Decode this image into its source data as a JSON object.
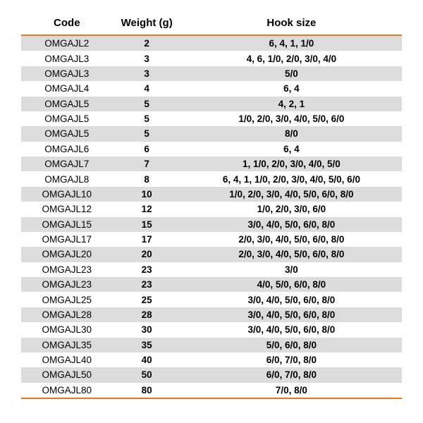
{
  "table": {
    "type": "table",
    "columns": [
      {
        "key": "code",
        "label": "Code",
        "width_pct": 24,
        "align": "center",
        "font_weight": 400
      },
      {
        "key": "weight",
        "label": "Weight (g)",
        "width_pct": 18,
        "align": "center",
        "font_weight": 700
      },
      {
        "key": "hook",
        "label": "Hook size",
        "width_pct": 58,
        "align": "center",
        "font_weight": 700
      }
    ],
    "header_fontsize": 15,
    "header_font_weight": 700,
    "body_fontsize": 13.5,
    "accent_color": "#e87722",
    "stripe_colors": [
      "#dcdcdc",
      "#ffffff"
    ],
    "text_color": "#000000",
    "background_color": "#ffffff",
    "font_family": "Arial, Helvetica, sans-serif",
    "row_padding_y": 3.2,
    "rows": [
      {
        "code": "OMGAJL2",
        "weight": "2",
        "hook": "6, 4, 1, 1/0"
      },
      {
        "code": "OMGAJL3",
        "weight": "3",
        "hook": "4, 6, 1/0, 2/0, 3/0, 4/0"
      },
      {
        "code": "OMGAJL3",
        "weight": "3",
        "hook": "5/0"
      },
      {
        "code": "OMGAJL4",
        "weight": "4",
        "hook": "6, 4"
      },
      {
        "code": "OMGAJL5",
        "weight": "5",
        "hook": "4, 2, 1"
      },
      {
        "code": "OMGAJL5",
        "weight": "5",
        "hook": "1/0, 2/0, 3/0, 4/0, 5/0, 6/0"
      },
      {
        "code": "OMGAJL5",
        "weight": "5",
        "hook": "8/0"
      },
      {
        "code": "OMGAJL6",
        "weight": "6",
        "hook": "6, 4"
      },
      {
        "code": "OMGAJL7",
        "weight": "7",
        "hook": "1, 1/0, 2/0, 3/0, 4/0, 5/0"
      },
      {
        "code": "OMGAJL8",
        "weight": "8",
        "hook": "6, 4, 1, 1/0, 2/0, 3/0, 4/0, 5/0, 6/0"
      },
      {
        "code": "OMGAJL10",
        "weight": "10",
        "hook": "1/0, 2/0, 3/0, 4/0, 5/0, 6/0, 8/0"
      },
      {
        "code": "OMGAJL12",
        "weight": "12",
        "hook": "1/0, 2/0, 3/0, 6/0"
      },
      {
        "code": "OMGAJL15",
        "weight": "15",
        "hook": "3/0, 4/0, 5/0, 6/0, 8/0"
      },
      {
        "code": "OMGAJL17",
        "weight": "17",
        "hook": "2/0, 3/0, 4/0, 5/0, 6/0, 8/0"
      },
      {
        "code": "OMGAJL20",
        "weight": "20",
        "hook": "2/0, 3/0, 4/0, 5/0, 6/0, 8/0"
      },
      {
        "code": "OMGAJL23",
        "weight": "23",
        "hook": "3/0"
      },
      {
        "code": "OMGAJL23",
        "weight": "23",
        "hook": "4/0, 5/0, 6/0, 8/0"
      },
      {
        "code": "OMGAJL25",
        "weight": "25",
        "hook": "3/0, 4/0, 5/0, 6/0, 8/0"
      },
      {
        "code": "OMGAJL28",
        "weight": "28",
        "hook": "3/0, 4/0, 5/0, 6/0, 8/0"
      },
      {
        "code": "OMGAJL30",
        "weight": "30",
        "hook": "3/0, 4/0, 5/0, 6/0, 8/0"
      },
      {
        "code": "OMGAJL35",
        "weight": "35",
        "hook": "5/0, 6/0, 8/0"
      },
      {
        "code": "OMGAJL40",
        "weight": "40",
        "hook": "6/0, 7/0, 8/0"
      },
      {
        "code": "OMGAJL50",
        "weight": "50",
        "hook": "6/0, 7/0, 8/0"
      },
      {
        "code": "OMGAJL80",
        "weight": "80",
        "hook": "7/0, 8/0"
      }
    ]
  }
}
